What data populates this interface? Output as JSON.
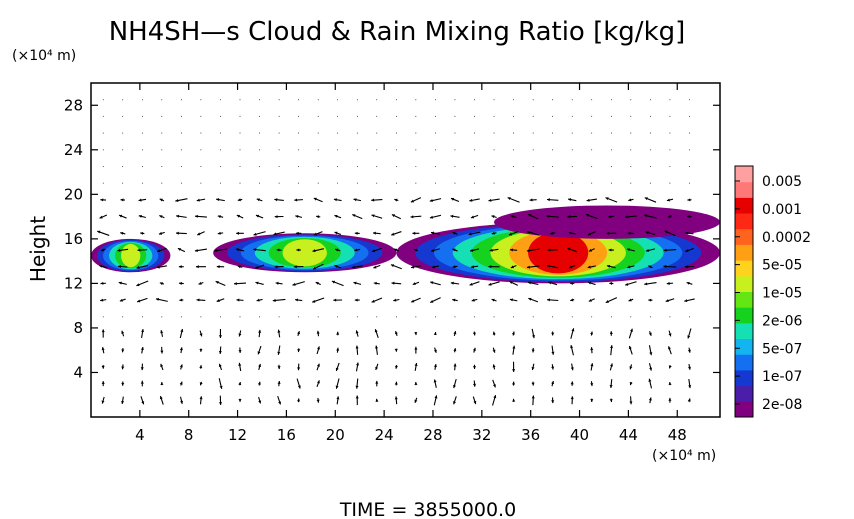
{
  "chart_data": {
    "type": "heatmap",
    "title": "NH4SH—s Cloud & Rain Mixing Ratio [kg/kg]",
    "ylabel": "Height",
    "y_unit": "(×10⁴ m)",
    "x_unit": "(×10⁴ m)",
    "xlim": [
      0,
      51.5
    ],
    "ylim": [
      0,
      30
    ],
    "x_ticks": [
      4,
      8,
      12,
      16,
      20,
      24,
      28,
      32,
      36,
      40,
      44,
      48
    ],
    "y_ticks": [
      4,
      8,
      12,
      16,
      20,
      24,
      28
    ],
    "grid": false,
    "colorbar": {
      "labels": [
        "0.005",
        "0.001",
        "0.0002",
        "5e-05",
        "1e-05",
        "2e-06",
        "5e-07",
        "1e-07",
        "2e-08"
      ],
      "colors": [
        "#800080",
        "#4a1ea8",
        "#1438d0",
        "#1470f0",
        "#14b4f0",
        "#14e0b4",
        "#14d21e",
        "#64e614",
        "#c8f01e",
        "#ffd21e",
        "#ffa014",
        "#ff641e",
        "#ff2814",
        "#e60000",
        "#ff7878",
        "#ffa0a0"
      ]
    },
    "cloud_regions": [
      {
        "x_range": [
          0,
          6.5
        ],
        "y_range": [
          13,
          16
        ],
        "max_level": "5e-05"
      },
      {
        "x_range": [
          10,
          25
        ],
        "y_range": [
          13,
          16.5
        ],
        "max_level": "5e-05"
      },
      {
        "x_range": [
          25,
          51.5
        ],
        "y_range": [
          12,
          17.5
        ],
        "max_level": "0.001"
      },
      {
        "x_range": [
          33,
          51.5
        ],
        "y_range": [
          16,
          19
        ],
        "max_level": "2e-08"
      }
    ],
    "vectors": "wind field arrows (u, w) overlaid on the cloud field"
  },
  "footer": {
    "time_label": "TIME  =  3855000.0"
  }
}
